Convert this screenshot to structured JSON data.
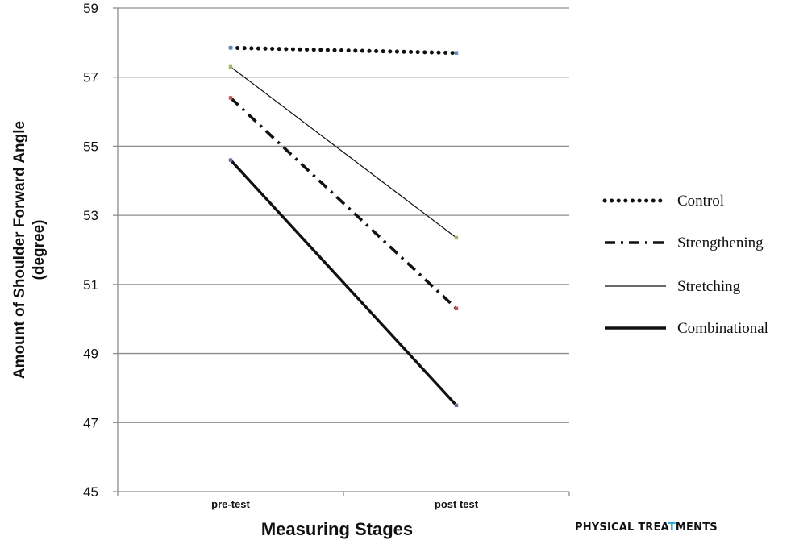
{
  "chart_data": {
    "type": "line",
    "title": "",
    "xlabel": "Measuring Stages",
    "ylabel_lines": [
      "Amount of Shoulder Forward Angle",
      "(degree)"
    ],
    "categories": [
      "pre-test",
      "post test"
    ],
    "ylim": [
      45,
      59
    ],
    "yticks": [
      45,
      47,
      49,
      51,
      53,
      55,
      57,
      59
    ],
    "grid": true,
    "legend_position": "right",
    "series": [
      {
        "name": "Control",
        "values": [
          57.85,
          57.7
        ],
        "style": "dotted",
        "marker_color": "#5b8bd6"
      },
      {
        "name": "Strengthening",
        "values": [
          56.4,
          50.3
        ],
        "style": "dashdot",
        "marker_color": "#d0504f"
      },
      {
        "name": "Stretching",
        "values": [
          57.3,
          52.35
        ],
        "style": "thin",
        "marker_color": "#9bbb59"
      },
      {
        "name": "Combinational",
        "values": [
          54.6,
          47.5
        ],
        "style": "thick",
        "marker_color": "#8064a2"
      }
    ]
  },
  "watermark": {
    "before": "PHYSICAL TREA",
    "accent": "T",
    "after": "MENTS"
  }
}
